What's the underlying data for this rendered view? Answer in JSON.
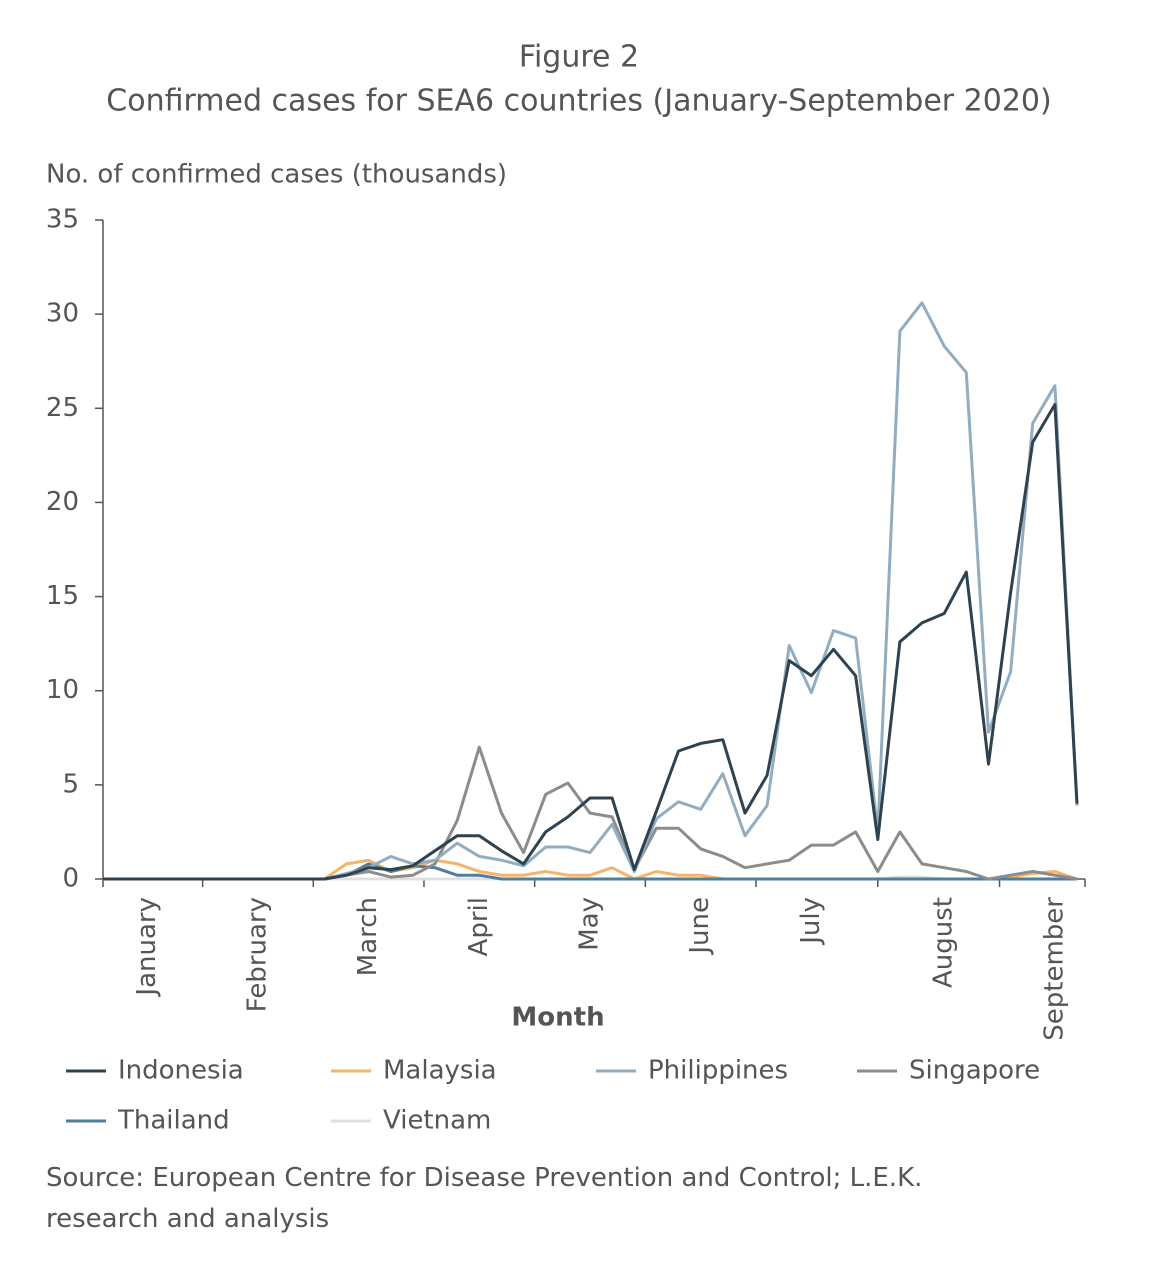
{
  "chart_data": {
    "type": "line",
    "title": "Figure 2",
    "subtitle": "Confirmed cases for SEA6 countries (January-September 2020)",
    "y_label": "No. of confirmed cases (thousands)",
    "x_label": "Month",
    "source": "Source: European Centre for Disease Prevention and Control; L.E.K. research and analysis",
    "categories": [
      null,
      null,
      "January",
      null,
      null,
      null,
      null,
      "February",
      null,
      null,
      null,
      null,
      "March",
      null,
      null,
      null,
      null,
      "April",
      null,
      null,
      null,
      null,
      "May",
      null,
      null,
      null,
      null,
      "June",
      null,
      null,
      null,
      null,
      "July",
      null,
      null,
      null,
      null,
      null,
      "August",
      null,
      null,
      null,
      null,
      "September",
      null
    ],
    "ylim": [
      0,
      35
    ],
    "yticks": [
      0,
      5,
      10,
      15,
      20,
      25,
      30,
      35
    ],
    "series": [
      {
        "name": "Indonesia",
        "color": "#2e4250",
        "values": [
          0,
          0,
          0,
          0,
          0,
          0,
          0,
          0,
          0,
          0,
          0,
          0.2,
          0.6,
          0.5,
          0.7,
          1.5,
          2.3,
          2.3,
          1.5,
          0.8,
          2.5,
          3.3,
          4.3,
          4.3,
          0.5,
          3.6,
          6.8,
          7.2,
          7.4,
          3.5,
          5.5,
          11.6,
          10.8,
          12.2,
          10.8,
          2.1,
          12.6,
          13.6,
          14.1,
          16.3,
          6.1,
          15.2,
          23.2,
          25.2,
          4.0
        ]
      },
      {
        "name": "Malaysia",
        "color": "#f5b36b",
        "values": [
          0,
          0,
          0,
          0,
          0,
          0,
          0,
          0,
          0,
          0,
          0,
          0.8,
          1.0,
          0.4,
          0.6,
          1.0,
          0.8,
          0.4,
          0.2,
          0.2,
          0.4,
          0.2,
          0.2,
          0.6,
          0,
          0.4,
          0.2,
          0.2,
          0,
          0,
          0,
          0,
          0,
          0,
          0,
          0,
          0,
          0,
          0,
          0,
          0,
          0.1,
          0.3,
          0.4,
          0
        ]
      },
      {
        "name": "Philippines",
        "color": "#93adc0",
        "values": [
          0,
          0,
          0,
          0,
          0,
          0,
          0,
          0,
          0,
          0,
          0,
          0.3,
          0.6,
          1.2,
          0.8,
          1.0,
          1.9,
          1.2,
          1.0,
          0.7,
          1.7,
          1.7,
          1.4,
          2.9,
          0.4,
          3.2,
          4.1,
          3.7,
          5.6,
          2.3,
          3.9,
          12.4,
          9.9,
          13.2,
          12.8,
          2.5,
          29.1,
          30.6,
          28.3,
          26.9,
          7.8,
          11.0,
          24.2,
          26.2,
          3.9
        ]
      },
      {
        "name": "Singapore",
        "color": "#8c8c8c",
        "values": [
          0,
          0,
          0,
          0,
          0,
          0,
          0,
          0,
          0,
          0,
          0,
          0.2,
          0.4,
          0.1,
          0.2,
          0.8,
          3.1,
          7.0,
          3.5,
          1.4,
          4.5,
          5.1,
          3.5,
          3.3,
          0.5,
          2.7,
          2.7,
          1.6,
          1.2,
          0.6,
          0.8,
          1.0,
          1.8,
          1.8,
          2.5,
          0.4,
          2.5,
          0.8,
          0.6,
          0.4,
          0,
          0.2,
          0.4,
          0.2,
          0
        ]
      },
      {
        "name": "Thailand",
        "color": "#4f7f9b",
        "values": [
          0,
          0,
          0,
          0,
          0,
          0,
          0,
          0,
          0,
          0,
          0,
          0.2,
          0.8,
          0.4,
          0.7,
          0.6,
          0.2,
          0.2,
          0,
          0,
          0,
          0,
          0,
          0,
          0,
          0,
          0,
          0,
          0,
          0,
          0,
          0,
          0,
          0,
          0,
          0,
          0,
          0,
          0,
          0,
          0,
          0,
          0,
          0,
          0
        ]
      },
      {
        "name": "Vietnam",
        "color": "#e0e0e0",
        "values": [
          0,
          0,
          0,
          0,
          0,
          0,
          0,
          0,
          0,
          0,
          0,
          0,
          0,
          0,
          0,
          0,
          0,
          0,
          0,
          0,
          0,
          0,
          0,
          0,
          0,
          0,
          0,
          0,
          0,
          0,
          0,
          0,
          0,
          0,
          0,
          0,
          0.1,
          0.1,
          0,
          0,
          0,
          0,
          0,
          0,
          0
        ]
      }
    ]
  }
}
